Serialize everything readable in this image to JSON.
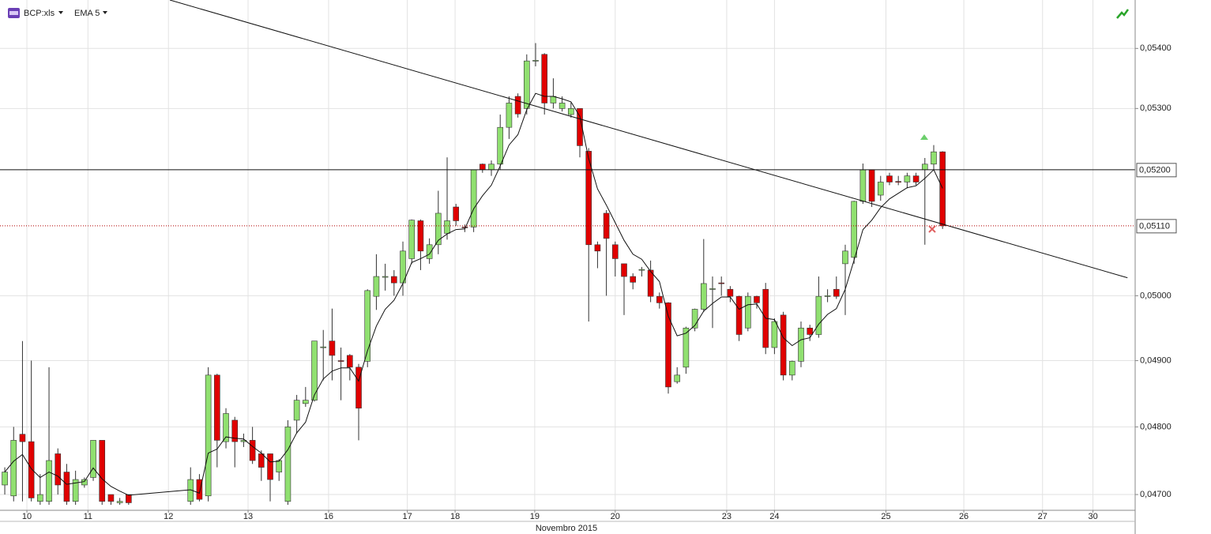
{
  "chart_data": {
    "type": "candlestick",
    "title": "BCP:xls",
    "indicator": "EMA 5",
    "xlabel": "Novembro 2015",
    "log_scale": true,
    "grid": true,
    "up_color": "#90e070",
    "down_color": "#e00000",
    "x": [
      0,
      1,
      2,
      3,
      4,
      5,
      6,
      7,
      8,
      9,
      10,
      11,
      12,
      13,
      14,
      21,
      22,
      23,
      24,
      25,
      26,
      27,
      28,
      29,
      30,
      31,
      32,
      33,
      34,
      35,
      36,
      37,
      38,
      39,
      40,
      41,
      42,
      43,
      44,
      45,
      46,
      47,
      48,
      49,
      50,
      51,
      52,
      53,
      54,
      55,
      56,
      57,
      58,
      59,
      60,
      61,
      62,
      63,
      64,
      65,
      66,
      67,
      68,
      69,
      70,
      71,
      72,
      73,
      74,
      75,
      76,
      77,
      78,
      79,
      80,
      81,
      82,
      83,
      84,
      85,
      86,
      87,
      88,
      89,
      90,
      91,
      92,
      93,
      94,
      95,
      96,
      97,
      98,
      99,
      100,
      101,
      102,
      103,
      104,
      105,
      106
    ],
    "open": [
      0.04714,
      0.04698,
      0.04789,
      0.04778,
      0.0469,
      0.0469,
      0.0476,
      0.04733,
      0.0469,
      0.04714,
      0.04725,
      0.0478,
      0.047,
      0.04688,
      0.047,
      0.0469,
      0.04722,
      0.04698,
      0.04878,
      0.04778,
      0.0481,
      0.04778,
      0.0478,
      0.0476,
      0.0476,
      0.04733,
      0.0469,
      0.0481,
      0.04835,
      0.0484,
      0.0492,
      0.0493,
      0.049,
      0.04908,
      0.0489,
      0.04899,
      0.04999,
      0.05029,
      0.0503,
      0.0502,
      0.05058,
      0.05118,
      0.05058,
      0.0508,
      0.05098,
      0.0514,
      0.05108,
      0.05108,
      0.05209,
      0.052,
      0.05209,
      0.05269,
      0.0532,
      0.053,
      0.05379,
      0.0539,
      0.05309,
      0.053,
      0.0529,
      0.053,
      0.0523,
      0.0508,
      0.0513,
      0.0508,
      0.0505,
      0.0503,
      0.0504,
      0.0504,
      0.04999,
      0.04989,
      0.04868,
      0.0489,
      0.0495,
      0.04979,
      0.0501,
      0.0502,
      0.0501,
      0.04999,
      0.0495,
      0.04999,
      0.0501,
      0.0492,
      0.0497,
      0.04878,
      0.04899,
      0.0495,
      0.0494,
      0.04999,
      0.0501,
      0.0505,
      0.0506,
      0.05149,
      0.052,
      0.05159,
      0.0519,
      0.05181,
      0.0518,
      0.0519,
      0.052,
      0.05209,
      0.05229
    ],
    "high": [
      0.0474,
      0.048,
      0.0493,
      0.049,
      0.0473,
      0.0489,
      0.04768,
      0.04745,
      0.04735,
      0.04725,
      0.0478,
      0.0478,
      0.047,
      0.04695,
      0.047,
      0.0474,
      0.0473,
      0.0489,
      0.0488,
      0.04828,
      0.04815,
      0.0479,
      0.048,
      0.04765,
      0.0476,
      0.04752,
      0.0481,
      0.04848,
      0.0486,
      0.0493,
      0.04947,
      0.0498,
      0.0492,
      0.0491,
      0.04895,
      0.0501,
      0.05065,
      0.0505,
      0.0504,
      0.05085,
      0.0512,
      0.0512,
      0.0509,
      0.05166,
      0.0522,
      0.05145,
      0.05112,
      0.052,
      0.0521,
      0.05215,
      0.0529,
      0.0532,
      0.05325,
      0.0539,
      0.05409,
      0.05392,
      0.0535,
      0.0532,
      0.0531,
      0.053,
      0.05235,
      0.05085,
      0.05135,
      0.05085,
      0.0505,
      0.05035,
      0.05045,
      0.05055,
      0.05005,
      0.0499,
      0.0489,
      0.04952,
      0.0498,
      0.05089,
      0.0503,
      0.0503,
      0.05015,
      0.05,
      0.05005,
      0.05,
      0.0502,
      0.04965,
      0.04975,
      0.049,
      0.0496,
      0.04955,
      0.0503,
      0.0501,
      0.0503,
      0.0508,
      0.0515,
      0.0521,
      0.052,
      0.0519,
      0.05195,
      0.0519,
      0.05195,
      0.05195,
      0.05219,
      0.0524,
      0.0523
    ],
    "low": [
      0.047,
      0.0469,
      0.0469,
      0.0469,
      0.04685,
      0.04685,
      0.047,
      0.04685,
      0.04685,
      0.0471,
      0.0472,
      0.04685,
      0.04685,
      0.04685,
      0.04685,
      0.04685,
      0.0469,
      0.0469,
      0.0474,
      0.04768,
      0.0474,
      0.0477,
      0.04745,
      0.0472,
      0.0469,
      0.0472,
      0.04685,
      0.0479,
      0.0483,
      0.04838,
      0.0487,
      0.0487,
      0.0484,
      0.0487,
      0.0478,
      0.0489,
      0.04978,
      0.05008,
      0.05,
      0.05,
      0.0505,
      0.0504,
      0.0505,
      0.05065,
      0.05088,
      0.0511,
      0.051,
      0.051,
      0.05195,
      0.0519,
      0.052,
      0.0525,
      0.05285,
      0.0529,
      0.0537,
      0.0529,
      0.053,
      0.05295,
      0.05285,
      0.0522,
      0.0496,
      0.05043,
      0.05,
      0.0503,
      0.0497,
      0.0501,
      0.0503,
      0.0499,
      0.0498,
      0.0485,
      0.04865,
      0.0488,
      0.04945,
      0.04975,
      0.0495,
      0.05,
      0.0499,
      0.0493,
      0.04945,
      0.0498,
      0.0491,
      0.0491,
      0.0487,
      0.0487,
      0.0489,
      0.0493,
      0.04935,
      0.0499,
      0.04995,
      0.0497,
      0.0505,
      0.05145,
      0.0514,
      0.0515,
      0.05175,
      0.05175,
      0.0517,
      0.05175,
      0.0508,
      0.052,
      0.05105
    ],
    "close": [
      0.04733,
      0.0478,
      0.04778,
      0.04695,
      0.047,
      0.0475,
      0.04714,
      0.0469,
      0.04722,
      0.04722,
      0.0478,
      0.0469,
      0.0469,
      0.0469,
      0.04688,
      0.04722,
      0.04693,
      0.04878,
      0.0478,
      0.0482,
      0.04778,
      0.0478,
      0.0475,
      0.0474,
      0.04722,
      0.0475,
      0.048,
      0.0484,
      0.0484,
      0.0493,
      0.04921,
      0.04908,
      0.04899,
      0.0489,
      0.04828,
      0.05008,
      0.0503,
      0.0503,
      0.0502,
      0.0507,
      0.05119,
      0.0507,
      0.0508,
      0.0513,
      0.05118,
      0.05118,
      0.05107,
      0.052,
      0.052,
      0.05209,
      0.05269,
      0.05309,
      0.05291,
      0.05379,
      0.0538,
      0.05309,
      0.0532,
      0.05309,
      0.053,
      0.05239,
      0.0508,
      0.0507,
      0.0509,
      0.05058,
      0.0503,
      0.05021,
      0.05041,
      0.04999,
      0.04989,
      0.0486,
      0.04878,
      0.0495,
      0.04979,
      0.05019,
      0.05011,
      0.05019,
      0.04999,
      0.0494,
      0.04999,
      0.04989,
      0.0492,
      0.0496,
      0.04878,
      0.04899,
      0.0495,
      0.0494,
      0.04999,
      0.05,
      0.04999,
      0.0507,
      0.05149,
      0.052,
      0.05149,
      0.0518,
      0.0518,
      0.0518,
      0.0519,
      0.0518,
      0.05209,
      0.05229,
      0.0511
    ],
    "ema": {
      "name": "EMA 5",
      "color": "#111111",
      "values": [
        0.04733,
        0.04749,
        0.04759,
        0.04738,
        0.04725,
        0.04733,
        0.04727,
        0.04715,
        0.04717,
        0.04719,
        0.04739,
        0.04723,
        0.04712,
        0.04705,
        0.04699,
        0.04707,
        0.04702,
        0.04761,
        0.04767,
        0.04785,
        0.04783,
        0.04782,
        0.04771,
        0.04761,
        0.04748,
        0.04749,
        0.04766,
        0.04791,
        0.04807,
        0.04848,
        0.04872,
        0.04884,
        0.04889,
        0.04889,
        0.04869,
        0.04915,
        0.04953,
        0.04979,
        0.04993,
        0.05019,
        0.05052,
        0.05058,
        0.05065,
        0.05087,
        0.05097,
        0.05104,
        0.05105,
        0.05137,
        0.05158,
        0.05175,
        0.05206,
        0.0524,
        0.05257,
        0.05298,
        0.05325,
        0.0532,
        0.0532,
        0.05316,
        0.05311,
        0.05287,
        0.05218,
        0.05169,
        0.05143,
        0.05115,
        0.05087,
        0.05065,
        0.05057,
        0.05038,
        0.05022,
        0.04968,
        0.04938,
        0.04942,
        0.04954,
        0.04976,
        0.04988,
        0.04998,
        0.04998,
        0.04979,
        0.04986,
        0.04987,
        0.04965,
        0.04963,
        0.04935,
        0.04923,
        0.04932,
        0.04935,
        0.04956,
        0.04971,
        0.0498,
        0.0501,
        0.05056,
        0.05104,
        0.05119,
        0.05139,
        0.05153,
        0.05162,
        0.05171,
        0.05174,
        0.05186,
        0.052,
        0.0517
      ]
    },
    "trendline": {
      "color": "#111111",
      "x": [
        18.66,
        126.9
      ],
      "y": [
        0.05482,
        0.05028
      ]
    },
    "hlines": [
      {
        "value": 0.052,
        "label": "0,05200",
        "color": "#111111",
        "style": "solid"
      },
      {
        "value": 0.0511,
        "label": "0,05110",
        "color": "#b00000",
        "style": "dotted"
      }
    ],
    "xlim": [
      -0.54,
      127.77
    ],
    "xticks": [
      {
        "value": 2.5,
        "label": "10"
      },
      {
        "value": 9.4,
        "label": "11"
      },
      {
        "value": 18.5,
        "label": "12"
      },
      {
        "value": 27.5,
        "label": "13"
      },
      {
        "value": 36.6,
        "label": "16"
      },
      {
        "value": 45.5,
        "label": "17"
      },
      {
        "value": 50.9,
        "label": "18"
      },
      {
        "value": 59.9,
        "label": "19"
      },
      {
        "value": 69,
        "label": "20"
      },
      {
        "value": 81.6,
        "label": "23"
      },
      {
        "value": 87,
        "label": "24"
      },
      {
        "value": 99.6,
        "label": "25"
      },
      {
        "value": 108.4,
        "label": "26"
      },
      {
        "value": 117.3,
        "label": "27"
      },
      {
        "value": 123,
        "label": "30"
      }
    ],
    "ylim": [
      0.04677,
      0.05482
    ],
    "yticks": [
      {
        "value": 0.047,
        "label": "0,04700"
      },
      {
        "value": 0.048,
        "label": "0,04800"
      },
      {
        "value": 0.049,
        "label": "0,04900"
      },
      {
        "value": 0.05,
        "label": "0,05000"
      },
      {
        "value": 0.053,
        "label": "0,05300"
      },
      {
        "value": 0.054,
        "label": "0,05400"
      }
    ]
  }
}
